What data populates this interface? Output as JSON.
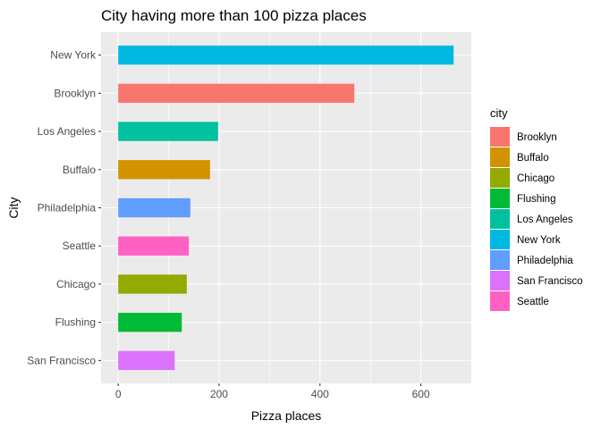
{
  "chart_data": {
    "type": "bar",
    "orientation": "horizontal",
    "title": "City having more than 100 pizza places",
    "xlabel": "Pizza places",
    "ylabel": "City",
    "xlim": [
      -34,
      700
    ],
    "x_ticks": [
      0,
      200,
      400,
      600
    ],
    "categories": [
      "San Francisco",
      "Flushing",
      "Chicago",
      "Seattle",
      "Philadelphia",
      "Buffalo",
      "Los Angeles",
      "Brooklyn",
      "New York"
    ],
    "values": [
      112,
      126,
      136,
      140,
      143,
      182,
      198,
      468,
      665
    ],
    "colors": {
      "Brooklyn": "#F8766D",
      "Buffalo": "#D39200",
      "Chicago": "#93AA00",
      "Flushing": "#00BA38",
      "Los Angeles": "#00C19F",
      "New York": "#00B9E3",
      "Philadelphia": "#619CFF",
      "San Francisco": "#DB72FB",
      "Seattle": "#FF61C3"
    },
    "legend": {
      "title": "city",
      "position": "right",
      "entries": [
        "Brooklyn",
        "Buffalo",
        "Chicago",
        "Flushing",
        "Los Angeles",
        "New York",
        "Philadelphia",
        "San Francisco",
        "Seattle"
      ]
    },
    "grid": true,
    "panel_background": "#EBEBEB",
    "grid_color": "#FFFFFF"
  }
}
